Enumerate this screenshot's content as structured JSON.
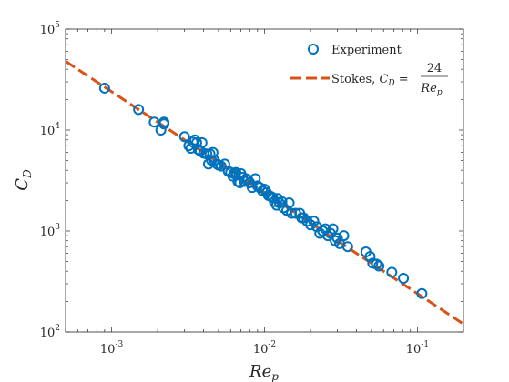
{
  "chart_data": {
    "type": "scatter",
    "xlabel": "Re",
    "xlabel_sub": "p",
    "ylabel": "C",
    "ylabel_sub": "D",
    "xscale": "log",
    "yscale": "log",
    "xlim": [
      0.0005,
      0.2
    ],
    "ylim": [
      100,
      100000
    ],
    "x_ticks": [
      {
        "value": 0.001,
        "base": "10",
        "exp": "-3"
      },
      {
        "value": 0.01,
        "base": "10",
        "exp": "-2"
      },
      {
        "value": 0.1,
        "base": "10",
        "exp": "-1"
      }
    ],
    "y_ticks": [
      {
        "value": 100,
        "base": "10",
        "exp": "2"
      },
      {
        "value": 1000,
        "base": "10",
        "exp": "3"
      },
      {
        "value": 10000,
        "base": "10",
        "exp": "4"
      },
      {
        "value": 100000,
        "base": "10",
        "exp": "5"
      }
    ],
    "grid": false,
    "legend_position": "top-right",
    "colors": {
      "experiment": "#0072BD",
      "stokes": "#D95319",
      "axes": "#262626"
    },
    "series": [
      {
        "name": "Experiment",
        "kind": "scatter",
        "marker": "open-circle",
        "x": [
          0.0009,
          0.0015,
          0.0019,
          0.0021,
          0.0022,
          0.0022,
          0.003,
          0.0032,
          0.0033,
          0.0034,
          0.0035,
          0.0036,
          0.0037,
          0.0038,
          0.0039,
          0.004,
          0.0042,
          0.0043,
          0.0044,
          0.0045,
          0.0046,
          0.0047,
          0.0049,
          0.005,
          0.0052,
          0.0055,
          0.0058,
          0.006,
          0.0062,
          0.0063,
          0.0065,
          0.0067,
          0.0069,
          0.007,
          0.0072,
          0.0074,
          0.0076,
          0.0078,
          0.008,
          0.0083,
          0.0087,
          0.009,
          0.0093,
          0.0097,
          0.01,
          0.0103,
          0.0106,
          0.011,
          0.0113,
          0.0116,
          0.012,
          0.0122,
          0.0125,
          0.013,
          0.0133,
          0.014,
          0.0145,
          0.015,
          0.016,
          0.017,
          0.0175,
          0.018,
          0.019,
          0.02,
          0.021,
          0.022,
          0.023,
          0.024,
          0.025,
          0.026,
          0.027,
          0.028,
          0.029,
          0.03,
          0.031,
          0.033,
          0.035,
          0.046,
          0.049,
          0.051,
          0.054,
          0.056,
          0.068,
          0.081,
          0.107
        ],
        "y": [
          26000,
          16000,
          12000,
          10000,
          12000,
          11500,
          8600,
          7000,
          6600,
          7600,
          8000,
          7500,
          6400,
          6200,
          7500,
          5900,
          5800,
          4600,
          5800,
          5000,
          6000,
          5000,
          4600,
          4500,
          4400,
          4600,
          3900,
          3800,
          3500,
          3700,
          3800,
          3100,
          3000,
          3700,
          3400,
          3100,
          3300,
          3200,
          3000,
          2700,
          3300,
          2800,
          2700,
          2500,
          2600,
          2400,
          2250,
          2200,
          2150,
          1950,
          1800,
          2100,
          1900,
          1950,
          1700,
          1600,
          1900,
          1500,
          1500,
          1500,
          1350,
          1350,
          1250,
          1150,
          1250,
          1100,
          950,
          1000,
          1050,
          900,
          950,
          1050,
          800,
          850,
          750,
          900,
          700,
          620,
          560,
          480,
          470,
          450,
          390,
          340,
          240
        ]
      },
      {
        "name": "Stokes, C_D = 24/Re_p",
        "kind": "line",
        "style": "dashed",
        "x": [
          0.0005,
          0.2
        ],
        "y": [
          48000,
          120
        ]
      }
    ]
  },
  "legend": {
    "experiment_label": "Experiment",
    "stokes_prefix": "Stokes, ",
    "stokes_lhs": "C",
    "stokes_lhs_sub": "D",
    "stokes_eq": " = ",
    "stokes_num": "24",
    "stokes_den": "Re",
    "stokes_den_sub": "p"
  }
}
